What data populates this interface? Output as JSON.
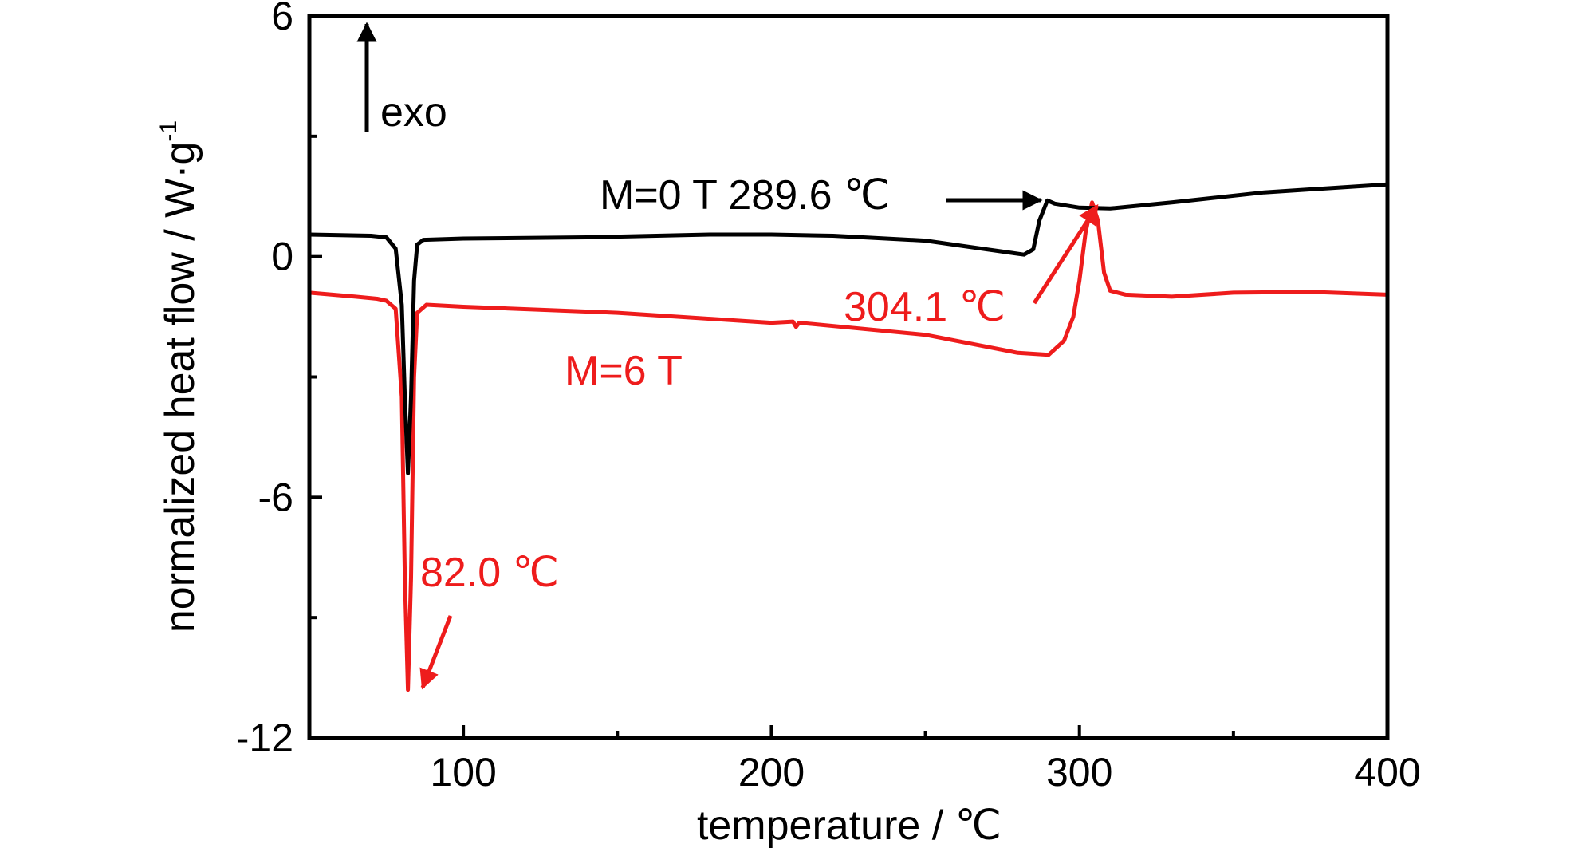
{
  "chart_data": {
    "type": "line",
    "xlabel": "temperature / ℃",
    "ylabel": "normalized heat flow / W·g",
    "ylabel_sup": "-1",
    "xlim": [
      50,
      400
    ],
    "ylim": [
      -12,
      6
    ],
    "x_ticks_major": [
      100,
      200,
      300,
      400
    ],
    "x_ticks_minor": [
      150,
      250,
      350
    ],
    "y_ticks_major": [
      6,
      0,
      -6,
      -12
    ],
    "y_ticks_minor": [
      3,
      -3,
      -9
    ],
    "grid": false,
    "colors": {
      "M=0 T": "#000000",
      "M=6 T": "#ee1c1c",
      "frame": "#000000"
    },
    "series": [
      {
        "name": "M=0 T",
        "color": "#000000",
        "points": [
          [
            50,
            0.55
          ],
          [
            70,
            0.52
          ],
          [
            75,
            0.48
          ],
          [
            78,
            0.2
          ],
          [
            80,
            -1.2
          ],
          [
            81,
            -3.5
          ],
          [
            82,
            -5.4
          ],
          [
            83,
            -3.5
          ],
          [
            84,
            -0.6
          ],
          [
            85,
            0.3
          ],
          [
            87,
            0.42
          ],
          [
            100,
            0.45
          ],
          [
            140,
            0.48
          ],
          [
            180,
            0.55
          ],
          [
            200,
            0.55
          ],
          [
            220,
            0.52
          ],
          [
            250,
            0.4
          ],
          [
            270,
            0.18
          ],
          [
            282,
            0.05
          ],
          [
            285,
            0.18
          ],
          [
            287,
            0.9
          ],
          [
            289.6,
            1.4
          ],
          [
            292,
            1.32
          ],
          [
            300,
            1.22
          ],
          [
            310,
            1.2
          ],
          [
            330,
            1.35
          ],
          [
            360,
            1.6
          ],
          [
            400,
            1.8
          ]
        ]
      },
      {
        "name": "M=6 T",
        "color": "#ee1c1c",
        "points": [
          [
            50,
            -0.9
          ],
          [
            65,
            -1.0
          ],
          [
            72,
            -1.05
          ],
          [
            75,
            -1.1
          ],
          [
            78,
            -1.3
          ],
          [
            80,
            -3.5
          ],
          [
            81,
            -8.0
          ],
          [
            82,
            -10.8
          ],
          [
            83,
            -8.0
          ],
          [
            84,
            -3.0
          ],
          [
            85,
            -1.4
          ],
          [
            88,
            -1.2
          ],
          [
            100,
            -1.25
          ],
          [
            150,
            -1.4
          ],
          [
            200,
            -1.65
          ],
          [
            207,
            -1.62
          ],
          [
            208,
            -1.75
          ],
          [
            209,
            -1.65
          ],
          [
            250,
            -1.95
          ],
          [
            280,
            -2.4
          ],
          [
            290,
            -2.45
          ],
          [
            295,
            -2.1
          ],
          [
            298,
            -1.5
          ],
          [
            300,
            -0.6
          ],
          [
            302,
            0.6
          ],
          [
            304.1,
            1.35
          ],
          [
            306,
            0.9
          ],
          [
            308,
            -0.4
          ],
          [
            310,
            -0.85
          ],
          [
            315,
            -0.95
          ],
          [
            330,
            -1.0
          ],
          [
            350,
            -0.9
          ],
          [
            375,
            -0.88
          ],
          [
            400,
            -0.95
          ]
        ]
      }
    ],
    "annotations": [
      {
        "text": "exo",
        "color": "#000000"
      },
      {
        "text": "M=0 T  289.6 ℃",
        "color": "#000000"
      },
      {
        "text": "304.1 ℃",
        "color": "#ee1c1c"
      },
      {
        "text": "M=6 T",
        "color": "#ee1c1c"
      },
      {
        "text": "82.0 ℃",
        "color": "#ee1c1c"
      }
    ]
  }
}
